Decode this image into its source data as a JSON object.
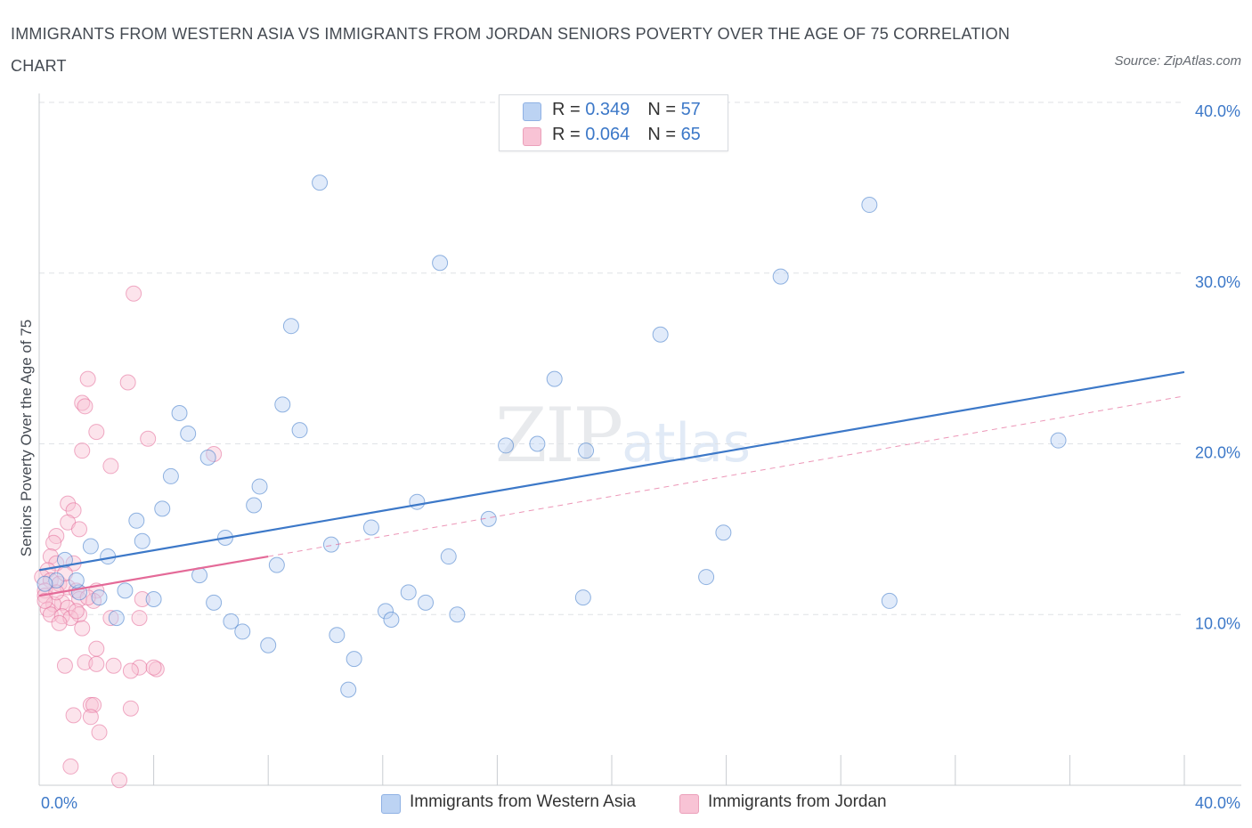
{
  "header": {
    "title": "IMMIGRANTS FROM WESTERN ASIA VS IMMIGRANTS FROM JORDAN SENIORS POVERTY OVER THE AGE OF 75 CORRELATION CHART",
    "source": "Source: ZipAtlas.com"
  },
  "watermark": {
    "zip": "ZIP",
    "atlas": "atlas"
  },
  "legend": {
    "rows": [
      {
        "r_label": "R = ",
        "r_value": "0.349",
        "n_label": "N = ",
        "n_value": "57"
      },
      {
        "r_label": "R = ",
        "r_value": "0.064",
        "n_label": "N = ",
        "n_value": "65"
      }
    ]
  },
  "chart_data": {
    "type": "scatter",
    "title": "IMMIGRANTS FROM WESTERN ASIA VS IMMIGRANTS FROM JORDAN SENIORS POVERTY OVER THE AGE OF 75 CORRELATION CHART",
    "xlabel": "",
    "ylabel": "Seniors Poverty Over the Age of 75",
    "xlim": [
      0,
      40
    ],
    "ylim": [
      0,
      40
    ],
    "x_tick_labels": [
      "0.0%",
      "40.0%"
    ],
    "y_ticks": [
      10,
      20,
      30,
      40
    ],
    "y_tick_labels": [
      "10.0%",
      "20.0%",
      "30.0%",
      "40.0%"
    ],
    "grid": true,
    "legend_position": "top-center",
    "colors": {
      "blue": "#3c78c8",
      "blue_fill": "#bcd3f3",
      "pink": "#e46a98",
      "pink_fill": "#f8c3d5"
    },
    "series": [
      {
        "name": "Immigrants from Western Asia",
        "R": 0.349,
        "N": 57,
        "trend": {
          "x": [
            0,
            40
          ],
          "y": [
            12.6,
            24.2
          ]
        },
        "points": [
          [
            9.8,
            35.3
          ],
          [
            14.0,
            30.6
          ],
          [
            29.0,
            34.0
          ],
          [
            25.9,
            29.8
          ],
          [
            8.8,
            26.9
          ],
          [
            21.7,
            26.4
          ],
          [
            18.0,
            23.8
          ],
          [
            8.5,
            22.3
          ],
          [
            4.9,
            21.8
          ],
          [
            5.2,
            20.6
          ],
          [
            9.1,
            20.8
          ],
          [
            16.3,
            19.9
          ],
          [
            17.4,
            20.0
          ],
          [
            19.1,
            19.6
          ],
          [
            35.6,
            20.2
          ],
          [
            5.9,
            19.2
          ],
          [
            4.6,
            18.1
          ],
          [
            7.7,
            17.5
          ],
          [
            4.3,
            16.2
          ],
          [
            7.5,
            16.4
          ],
          [
            13.2,
            16.6
          ],
          [
            3.4,
            15.5
          ],
          [
            15.7,
            15.6
          ],
          [
            11.6,
            15.1
          ],
          [
            23.9,
            14.8
          ],
          [
            6.5,
            14.5
          ],
          [
            3.6,
            14.3
          ],
          [
            10.2,
            14.1
          ],
          [
            1.8,
            14.0
          ],
          [
            0.9,
            13.2
          ],
          [
            2.4,
            13.4
          ],
          [
            14.3,
            13.4
          ],
          [
            8.3,
            12.9
          ],
          [
            1.4,
            11.3
          ],
          [
            5.6,
            12.3
          ],
          [
            23.3,
            12.2
          ],
          [
            0.6,
            12.0
          ],
          [
            1.3,
            12.0
          ],
          [
            3.0,
            11.4
          ],
          [
            12.9,
            11.3
          ],
          [
            2.1,
            11.0
          ],
          [
            4.0,
            10.9
          ],
          [
            19.0,
            11.0
          ],
          [
            29.7,
            10.8
          ],
          [
            13.5,
            10.7
          ],
          [
            6.1,
            10.7
          ],
          [
            12.1,
            10.2
          ],
          [
            14.6,
            10.0
          ],
          [
            2.7,
            9.8
          ],
          [
            6.7,
            9.6
          ],
          [
            12.3,
            9.7
          ],
          [
            7.1,
            9.0
          ],
          [
            8.0,
            8.2
          ],
          [
            10.4,
            8.8
          ],
          [
            11.0,
            7.4
          ],
          [
            10.8,
            5.6
          ],
          [
            0.2,
            11.8
          ]
        ]
      },
      {
        "name": "Immigrants from Jordan",
        "R": 0.064,
        "N": 65,
        "trend_solid": {
          "x": [
            0,
            8.0
          ],
          "y": [
            11.1,
            13.4
          ]
        },
        "trend_dashed": {
          "x": [
            8.0,
            40
          ],
          "y": [
            13.4,
            22.8
          ]
        },
        "points": [
          [
            3.3,
            28.8
          ],
          [
            1.7,
            23.8
          ],
          [
            3.1,
            23.6
          ],
          [
            1.5,
            22.4
          ],
          [
            1.6,
            22.2
          ],
          [
            2.0,
            20.7
          ],
          [
            3.8,
            20.3
          ],
          [
            1.5,
            19.6
          ],
          [
            6.1,
            19.4
          ],
          [
            2.5,
            18.7
          ],
          [
            1.0,
            16.5
          ],
          [
            1.2,
            16.1
          ],
          [
            1.0,
            15.4
          ],
          [
            1.4,
            15.0
          ],
          [
            0.6,
            14.6
          ],
          [
            0.5,
            14.2
          ],
          [
            0.4,
            13.4
          ],
          [
            0.6,
            13.0
          ],
          [
            0.3,
            12.6
          ],
          [
            0.1,
            12.2
          ],
          [
            0.4,
            12.0
          ],
          [
            0.7,
            11.8
          ],
          [
            1.0,
            11.6
          ],
          [
            2.0,
            11.4
          ],
          [
            0.2,
            11.4
          ],
          [
            1.3,
            11.4
          ],
          [
            0.2,
            11.1
          ],
          [
            1.4,
            10.9
          ],
          [
            3.6,
            10.9
          ],
          [
            0.8,
            10.7
          ],
          [
            1.9,
            10.8
          ],
          [
            0.5,
            10.6
          ],
          [
            1.0,
            10.4
          ],
          [
            0.3,
            10.3
          ],
          [
            1.4,
            10.0
          ],
          [
            0.4,
            10.0
          ],
          [
            0.8,
            9.9
          ],
          [
            1.1,
            9.8
          ],
          [
            2.5,
            9.8
          ],
          [
            3.5,
            9.8
          ],
          [
            0.7,
            9.5
          ],
          [
            1.5,
            9.2
          ],
          [
            2.0,
            8.0
          ],
          [
            1.6,
            7.2
          ],
          [
            0.9,
            7.0
          ],
          [
            2.6,
            7.0
          ],
          [
            3.5,
            6.9
          ],
          [
            4.1,
            6.8
          ],
          [
            4.0,
            6.9
          ],
          [
            3.2,
            6.7
          ],
          [
            2.0,
            7.1
          ],
          [
            1.8,
            4.7
          ],
          [
            1.9,
            4.7
          ],
          [
            3.2,
            4.5
          ],
          [
            1.2,
            4.1
          ],
          [
            1.8,
            4.0
          ],
          [
            2.1,
            3.1
          ],
          [
            1.1,
            1.1
          ],
          [
            2.8,
            0.3
          ],
          [
            0.6,
            11.3
          ],
          [
            1.2,
            13.0
          ],
          [
            0.9,
            12.4
          ],
          [
            1.7,
            11.0
          ],
          [
            0.2,
            10.8
          ],
          [
            1.3,
            10.2
          ]
        ]
      }
    ]
  }
}
